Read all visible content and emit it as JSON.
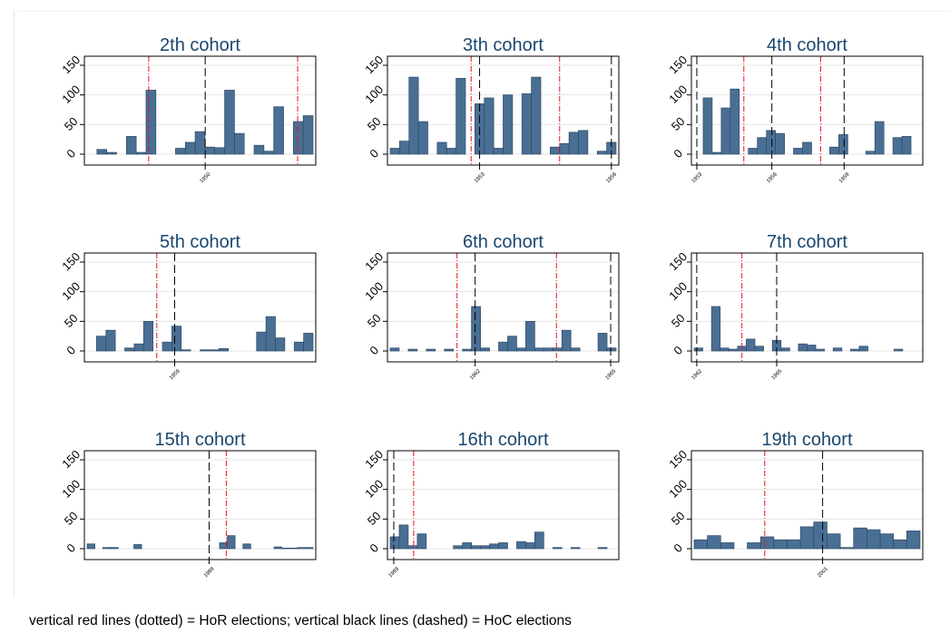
{
  "footnote": "vertical red lines (dotted) = HoR elections; vertical black lines (dashed) = HoC elections",
  "colors": {
    "bar_fill": "#4a6f94",
    "bar_edge": "#2e4a66",
    "title": "#1a476f",
    "hor_line": "#e8131d",
    "hoc_line": "#000000",
    "grid": "#e6e6e6"
  },
  "chart_data": [
    {
      "type": "bar",
      "title": "2th cohort",
      "ylim": [
        0,
        150
      ],
      "yticks": [
        0,
        50,
        100,
        150
      ],
      "xlim": [
        0,
        22
      ],
      "xticks": [
        {
          "x": 11.5,
          "label": "1950"
        }
      ],
      "values": [
        0,
        8,
        3,
        0,
        30,
        3,
        108,
        0,
        0,
        10,
        20,
        38,
        12,
        11,
        108,
        35,
        0,
        15,
        5,
        80,
        0,
        55,
        65
      ],
      "hor_elections": [
        6.0,
        20.5
      ],
      "hoc_elections": [
        11.5
      ]
    },
    {
      "type": "bar",
      "title": "3th cohort",
      "ylim": [
        0,
        150
      ],
      "yticks": [
        0,
        50,
        100,
        150
      ],
      "xlim": [
        0,
        24
      ],
      "xticks": [
        {
          "x": 9.5,
          "label": "1953"
        },
        {
          "x": 23.5,
          "label": "1956"
        }
      ],
      "values": [
        10,
        22,
        130,
        55,
        0,
        20,
        10,
        128,
        0,
        85,
        95,
        10,
        100,
        0,
        102,
        130,
        0,
        12,
        18,
        37,
        40,
        0,
        5,
        20
      ],
      "hor_elections": [
        8.6,
        18.0
      ],
      "hoc_elections": [
        9.5,
        23.5
      ]
    },
    {
      "type": "bar",
      "title": "4th cohort",
      "ylim": [
        0,
        150
      ],
      "yticks": [
        0,
        50,
        100,
        150
      ],
      "xlim": [
        0,
        25
      ],
      "xticks": [
        {
          "x": 0.3,
          "label": "1953"
        },
        {
          "x": 8.6,
          "label": "1956"
        },
        {
          "x": 16.6,
          "label": "1959"
        }
      ],
      "values": [
        0,
        95,
        3,
        78,
        110,
        0,
        10,
        28,
        40,
        35,
        0,
        10,
        20,
        0,
        0,
        12,
        33,
        0,
        0,
        5,
        55,
        0,
        28,
        30,
        0
      ],
      "hor_elections": [
        5.5,
        14.0
      ],
      "hoc_elections": [
        0.3,
        8.6,
        16.6
      ]
    },
    {
      "type": "bar",
      "title": "5th cohort",
      "ylim": [
        0,
        150
      ],
      "yticks": [
        0,
        50,
        100,
        150
      ],
      "xlim": [
        0,
        24
      ],
      "xticks": [
        {
          "x": 9.3,
          "label": "1959"
        }
      ],
      "values": [
        0,
        25,
        35,
        0,
        5,
        12,
        50,
        0,
        15,
        42,
        2,
        0,
        2,
        2,
        4,
        0,
        0,
        0,
        32,
        58,
        22,
        0,
        15,
        30
      ],
      "hor_elections": [
        7.4
      ],
      "hoc_elections": [
        9.3
      ]
    },
    {
      "type": "bar",
      "title": "6th cohort",
      "ylim": [
        0,
        150
      ],
      "yticks": [
        0,
        50,
        100,
        150
      ],
      "xlim": [
        0,
        25
      ],
      "xticks": [
        {
          "x": 9.4,
          "label": "1962"
        },
        {
          "x": 24.4,
          "label": "1965"
        }
      ],
      "values": [
        5,
        0,
        3,
        0,
        3,
        0,
        3,
        0,
        3,
        75,
        5,
        0,
        15,
        25,
        5,
        50,
        5,
        5,
        5,
        35,
        5,
        0,
        0,
        30,
        5
      ],
      "hor_elections": [
        7.4,
        18.4
      ],
      "hoc_elections": [
        9.4,
        24.4
      ]
    },
    {
      "type": "bar",
      "title": "7th cohort",
      "ylim": [
        0,
        150
      ],
      "yticks": [
        0,
        50,
        100,
        150
      ],
      "xlim": [
        0,
        26
      ],
      "xticks": [
        {
          "x": 0.3,
          "label": "1962"
        },
        {
          "x": 9.5,
          "label": "1965"
        }
      ],
      "values": [
        5,
        0,
        75,
        5,
        3,
        8,
        20,
        8,
        0,
        18,
        5,
        0,
        12,
        10,
        3,
        0,
        5,
        0,
        3,
        8,
        0,
        0,
        0,
        3,
        0,
        0
      ],
      "hor_elections": [
        5.5
      ],
      "hoc_elections": [
        0.3,
        9.5
      ]
    },
    {
      "type": "bar",
      "title": "15th cohort",
      "ylim": [
        0,
        150
      ],
      "yticks": [
        0,
        50,
        100,
        150
      ],
      "xlim": [
        0,
        25
      ],
      "xticks": [
        {
          "x": 13.5,
          "label": "1989"
        }
      ],
      "values": [
        8,
        0,
        2,
        2,
        0,
        0,
        7,
        0,
        0,
        0,
        0,
        0,
        0,
        0,
        0,
        0,
        0,
        10,
        22,
        0,
        8,
        0,
        0,
        0,
        3,
        1,
        1,
        2,
        2
      ],
      "hor_elections": [
        15.4
      ],
      "hoc_elections": [
        13.5
      ]
    },
    {
      "type": "bar",
      "title": "16th cohort",
      "ylim": [
        0,
        150
      ],
      "yticks": [
        0,
        50,
        100,
        150
      ],
      "xlim": [
        0,
        25
      ],
      "xticks": [
        {
          "x": 0.4,
          "label": "1989"
        }
      ],
      "values": [
        20,
        40,
        5,
        25,
        0,
        0,
        0,
        5,
        10,
        5,
        5,
        8,
        10,
        0,
        12,
        10,
        28,
        0,
        2,
        0,
        2,
        0,
        0,
        2,
        0
      ],
      "hor_elections": [
        2.6
      ],
      "hoc_elections": [
        0.4
      ]
    },
    {
      "type": "bar",
      "title": "19th cohort",
      "ylim": [
        0,
        150
      ],
      "yticks": [
        0,
        50,
        100,
        150
      ],
      "xlim": [
        0,
        16
      ],
      "xticks": [
        {
          "x": 9.1,
          "label": "2001"
        }
      ],
      "values": [
        15,
        22,
        10,
        0,
        10,
        20,
        15,
        15,
        37,
        45,
        25,
        2,
        35,
        32,
        25,
        15,
        30
      ],
      "hor_elections": [
        5.0
      ],
      "hoc_elections": [
        9.1
      ]
    }
  ]
}
